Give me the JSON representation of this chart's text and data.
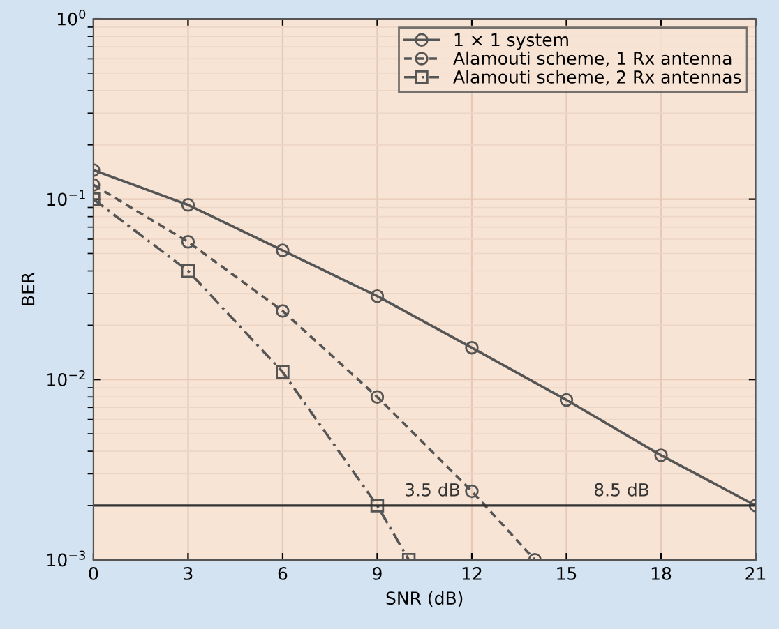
{
  "chart_data": {
    "type": "line",
    "xlabel": "SNR (dB)",
    "ylabel": "BER",
    "log": "y",
    "xlim": [
      0,
      21
    ],
    "xticks": [
      0,
      3,
      6,
      9,
      12,
      15,
      18,
      21
    ],
    "ylim": [
      0.001,
      1
    ],
    "yticks": [
      {
        "value": 1,
        "label": "10$^{0}$"
      },
      {
        "value": 0.1,
        "label": "10$^{−1}$"
      },
      {
        "value": 0.01,
        "label": "10$^{−2}$"
      },
      {
        "value": 0.001,
        "label": "10$^{−3}$"
      }
    ],
    "grid": true,
    "legend": "top right",
    "series": [
      {
        "name": "1 × 1 system",
        "color": "#555555",
        "marker": "circle",
        "line_style": "solid",
        "x": [
          0,
          3,
          6,
          9,
          12,
          15,
          18,
          21
        ],
        "values": [
          0.145,
          0.093,
          0.052,
          0.029,
          0.015,
          0.0077,
          0.0038,
          0.002
        ]
      },
      {
        "name": "Alamouti scheme, 1 Rx antenna",
        "color": "#555555",
        "marker": "circle",
        "line_style": "dotted",
        "x": [
          0,
          3,
          6,
          9,
          12,
          14
        ],
        "values": [
          0.12,
          0.058,
          0.024,
          0.008,
          0.0024,
          0.001
        ]
      },
      {
        "name": "Alamouti scheme, 2 Rx antennas",
        "color": "#555555",
        "marker": "square",
        "line_style": "dashed",
        "x": [
          0,
          3,
          6,
          9,
          10
        ],
        "values": [
          0.1,
          0.04,
          0.011,
          0.002,
          0.001
        ]
      }
    ],
    "ref_lines": [
      {
        "axis": "y",
        "value": 0.002,
        "color": "#333333",
        "line_style": "solid"
      }
    ],
    "annotations": [
      {
        "text": "3.5 dB",
        "x": 10.75,
        "y": 0.002
      },
      {
        "text": "8.5 dB",
        "x": 16.75,
        "y": 0.002
      }
    ]
  }
}
